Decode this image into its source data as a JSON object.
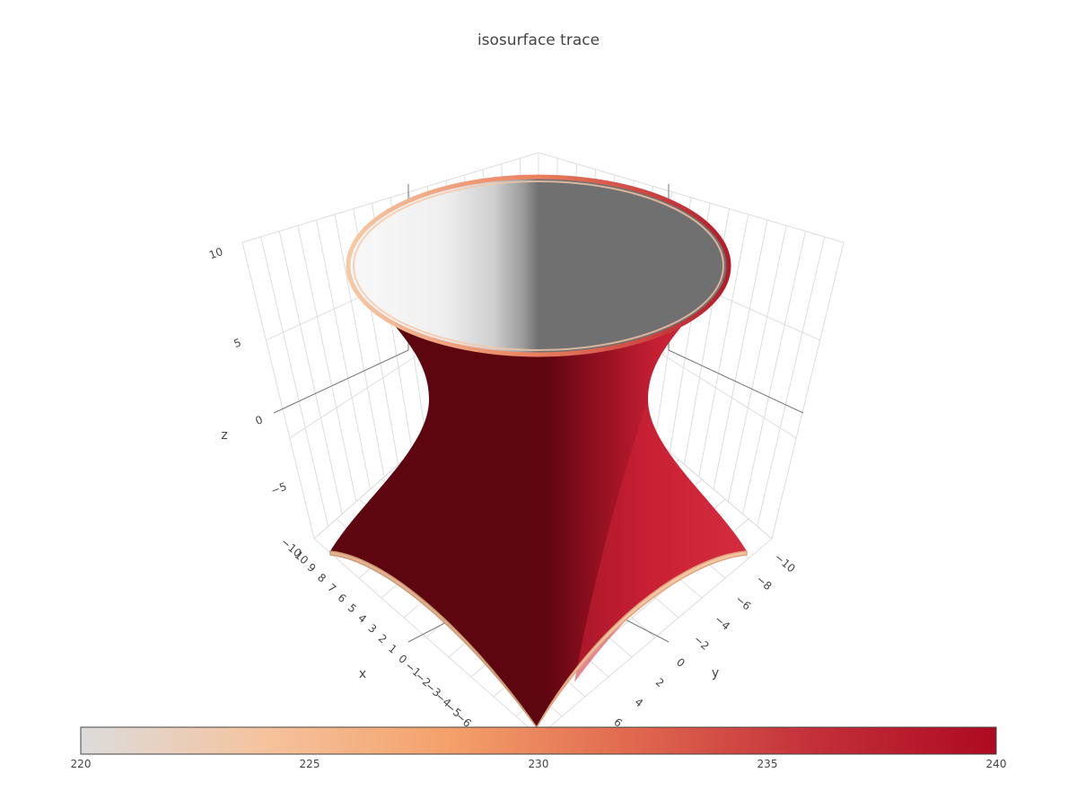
{
  "chart_data": {
    "type": "isosurface",
    "title": "isosurface trace",
    "axes": {
      "x": {
        "label": "x",
        "ticks": [
          "−10",
          "10",
          "9",
          "8",
          "7",
          "6",
          "5",
          "4",
          "3",
          "2",
          "1",
          "0",
          "−1",
          "−2",
          "−3",
          "−4",
          "−5",
          "−6"
        ]
      },
      "y": {
        "label": "y",
        "ticks": [
          "−10",
          "−8",
          "−6",
          "−4",
          "−2",
          "0",
          "2",
          "4",
          "6"
        ]
      },
      "z": {
        "label": "z",
        "ticks": [
          "10",
          "5",
          "0",
          "−5"
        ]
      }
    },
    "colorbar": {
      "orientation": "horizontal",
      "min": 220,
      "max": 240,
      "ticks": [
        "220",
        "225",
        "230",
        "235",
        "240"
      ],
      "colorscale": [
        "#dcdcdc",
        "#f5c39e",
        "#f4a16b",
        "#e0694f",
        "#c3303a",
        "#ae0a20"
      ]
    },
    "surface_colors": {
      "outer_dark": "#5e0610",
      "outer_light": "#d42a40",
      "inner_shadow": "#707070",
      "inner_light": "#f4f4f4"
    }
  }
}
